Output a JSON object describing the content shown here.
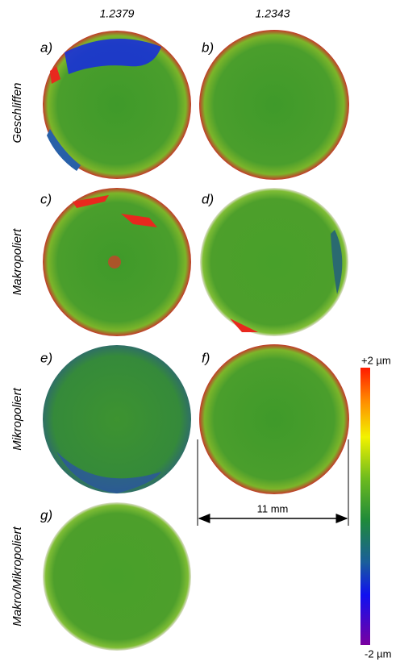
{
  "figure": {
    "columns": [
      "1.2379",
      "1.2343"
    ],
    "rows": [
      "Geschliffen",
      "Makropoliert",
      "Mikropoliert",
      "Makro/Mikropoliert"
    ],
    "panels": [
      "a)",
      "b)",
      "c)",
      "d)",
      "e)",
      "f)",
      "g)"
    ],
    "colorbar": {
      "top": "+2 µm",
      "bottom": "-2 µm"
    },
    "scale": "11 mm"
  }
}
